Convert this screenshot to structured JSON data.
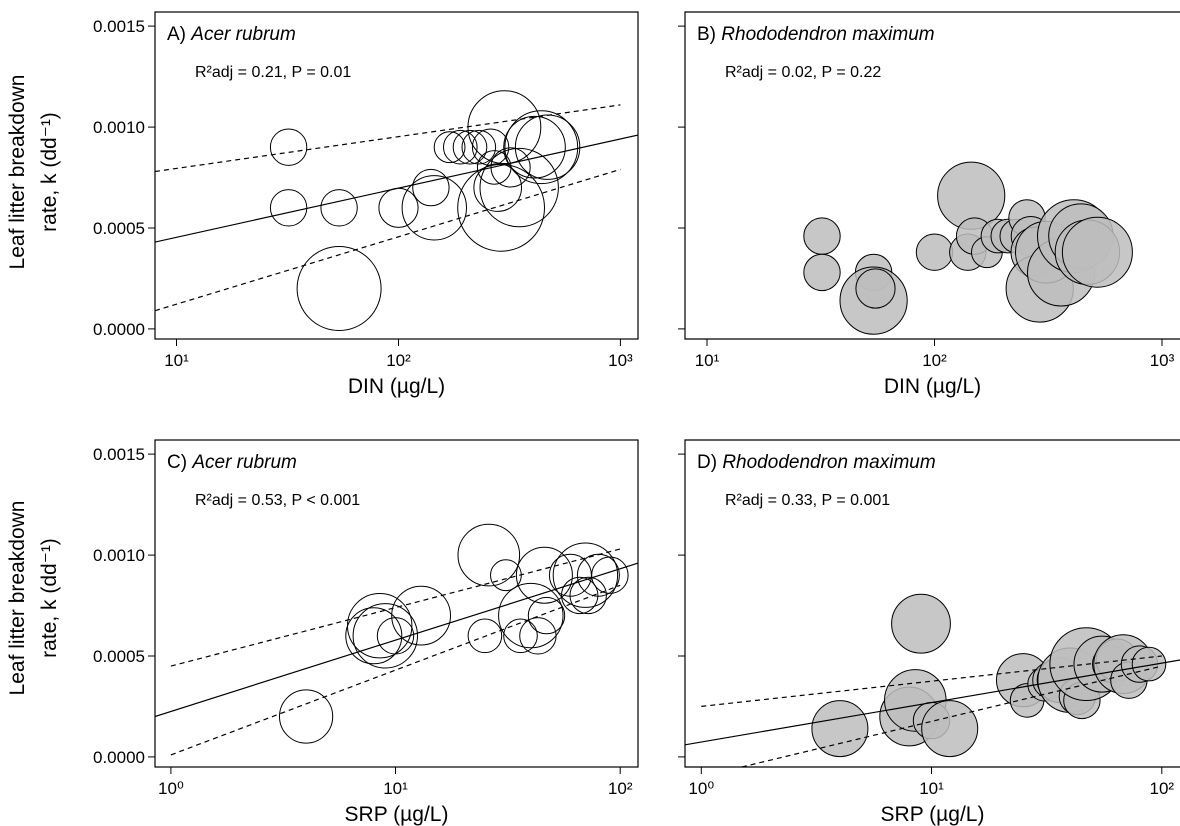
{
  "figure": {
    "y_axis_label_line1": "Leaf litter breakdown",
    "y_axis_label_line2": "rate, k (dd⁻¹)"
  },
  "chart_data": [
    {
      "type": "scatter",
      "panel": "A) ",
      "title": "Acer rubrum",
      "stat": "R²adj = 0.21, P = 0.01",
      "xlabel": "DIN (µg/L)",
      "xscale": "log",
      "xlim": [
        8,
        1200
      ],
      "ylim": [
        -5e-05,
        0.00157
      ],
      "xticks": [
        10,
        100,
        1000
      ],
      "xtick_labels": [
        "10¹",
        "10²",
        "10³"
      ],
      "yticks": [
        0.0,
        0.0005,
        0.001,
        0.0015
      ],
      "ytick_labels": [
        "0.0000",
        "0.0005",
        "0.0010",
        "0.0015"
      ],
      "show_ytick_labels": true,
      "marker_fill": "#ffffff",
      "fit_line": {
        "x": [
          8,
          1200
        ],
        "y": [
          0.00043,
          0.00096
        ]
      },
      "ci_upper": {
        "x": [
          8,
          1000
        ],
        "y": [
          0.00078,
          0.00111
        ]
      },
      "ci_lower": {
        "x": [
          8,
          1000
        ],
        "y": [
          9e-05,
          0.00079
        ]
      },
      "points": [
        {
          "x": 32,
          "y": 0.0009,
          "size": 1.3
        },
        {
          "x": 32,
          "y": 0.0006,
          "size": 1.3
        },
        {
          "x": 54,
          "y": 0.0006,
          "size": 1.3
        },
        {
          "x": 54,
          "y": 0.0002,
          "size": 3.0
        },
        {
          "x": 100,
          "y": 0.0006,
          "size": 1.4
        },
        {
          "x": 140,
          "y": 0.0007,
          "size": 1.3
        },
        {
          "x": 145,
          "y": 0.0006,
          "size": 2.3
        },
        {
          "x": 170,
          "y": 0.0009,
          "size": 1.1
        },
        {
          "x": 190,
          "y": 0.0009,
          "size": 1.2
        },
        {
          "x": 210,
          "y": 0.0009,
          "size": 1.2
        },
        {
          "x": 230,
          "y": 0.0009,
          "size": 1.2
        },
        {
          "x": 260,
          "y": 0.0009,
          "size": 1.3
        },
        {
          "x": 270,
          "y": 0.0008,
          "size": 1.2
        },
        {
          "x": 280,
          "y": 0.0007,
          "size": 1.7
        },
        {
          "x": 290,
          "y": 0.0006,
          "size": 3.1
        },
        {
          "x": 300,
          "y": 0.001,
          "size": 2.6
        },
        {
          "x": 320,
          "y": 0.0008,
          "size": 1.4
        },
        {
          "x": 350,
          "y": 0.0007,
          "size": 2.8
        },
        {
          "x": 410,
          "y": 0.0009,
          "size": 2.2
        },
        {
          "x": 440,
          "y": 0.0009,
          "size": 2.6
        },
        {
          "x": 470,
          "y": 0.0009,
          "size": 2.3
        }
      ]
    },
    {
      "type": "scatter",
      "panel": "B) ",
      "title": "Rhododendron maximum",
      "stat": "R²adj = 0.02, P = 0.22",
      "xlabel": "DIN (µg/L)",
      "xscale": "log",
      "xlim": [
        8,
        1200
      ],
      "ylim": [
        -5e-05,
        0.00157
      ],
      "xticks": [
        10,
        100,
        1000
      ],
      "xtick_labels": [
        "10¹",
        "10²",
        "10³"
      ],
      "yticks": [
        0.0,
        0.0005,
        0.001,
        0.0015
      ],
      "ytick_labels": [
        "0.0000",
        "0.0005",
        "0.0010",
        "0.0015"
      ],
      "show_ytick_labels": false,
      "marker_fill": "#bdbdbd",
      "points": [
        {
          "x": 32,
          "y": 0.00046,
          "size": 1.3
        },
        {
          "x": 32,
          "y": 0.00028,
          "size": 1.3
        },
        {
          "x": 54,
          "y": 0.00028,
          "size": 1.3
        },
        {
          "x": 54,
          "y": 0.00014,
          "size": 2.4
        },
        {
          "x": 55,
          "y": 0.0002,
          "size": 1.4
        },
        {
          "x": 100,
          "y": 0.00038,
          "size": 1.3
        },
        {
          "x": 140,
          "y": 0.00038,
          "size": 1.3
        },
        {
          "x": 145,
          "y": 0.00066,
          "size": 2.4
        },
        {
          "x": 150,
          "y": 0.00046,
          "size": 1.3
        },
        {
          "x": 170,
          "y": 0.00038,
          "size": 1.1
        },
        {
          "x": 190,
          "y": 0.00046,
          "size": 1.2
        },
        {
          "x": 210,
          "y": 0.00046,
          "size": 1.2
        },
        {
          "x": 230,
          "y": 0.00046,
          "size": 1.2
        },
        {
          "x": 255,
          "y": 0.00055,
          "size": 1.3
        },
        {
          "x": 265,
          "y": 0.00046,
          "size": 1.4
        },
        {
          "x": 280,
          "y": 0.00038,
          "size": 1.8
        },
        {
          "x": 290,
          "y": 0.0002,
          "size": 2.4
        },
        {
          "x": 310,
          "y": 0.00038,
          "size": 2.2
        },
        {
          "x": 360,
          "y": 0.00028,
          "size": 2.4
        },
        {
          "x": 410,
          "y": 0.00046,
          "size": 2.6
        },
        {
          "x": 440,
          "y": 0.00046,
          "size": 2.3
        },
        {
          "x": 470,
          "y": 0.00038,
          "size": 2.3
        },
        {
          "x": 520,
          "y": 0.00038,
          "size": 2.5
        }
      ]
    },
    {
      "type": "scatter",
      "panel": "C) ",
      "title": "Acer rubrum",
      "stat": "R²adj = 0.53, P < 0.001",
      "xlabel": "SRP (µg/L)",
      "xscale": "log",
      "xlim": [
        0.85,
        120
      ],
      "ylim": [
        -5e-05,
        0.00157
      ],
      "xticks": [
        1,
        10,
        100
      ],
      "xtick_labels": [
        "10⁰",
        "10¹",
        "10²"
      ],
      "yticks": [
        0.0,
        0.0005,
        0.001,
        0.0015
      ],
      "ytick_labels": [
        "0.0000",
        "0.0005",
        "0.0010",
        "0.0015"
      ],
      "show_ytick_labels": true,
      "marker_fill": "#ffffff",
      "fit_line": {
        "x": [
          0.85,
          120
        ],
        "y": [
          0.0002,
          0.00096
        ]
      },
      "ci_upper": {
        "x": [
          1,
          100
        ],
        "y": [
          0.00045,
          0.00103
        ]
      },
      "ci_lower": {
        "x": [
          1,
          100
        ],
        "y": [
          1e-05,
          0.00085
        ]
      },
      "points": [
        {
          "x": 4,
          "y": 0.0002,
          "size": 1.9
        },
        {
          "x": 8,
          "y": 0.0006,
          "size": 2.0
        },
        {
          "x": 8.5,
          "y": 0.00065,
          "size": 2.3
        },
        {
          "x": 9,
          "y": 0.0006,
          "size": 2.3
        },
        {
          "x": 10,
          "y": 0.0006,
          "size": 1.3
        },
        {
          "x": 13,
          "y": 0.0007,
          "size": 2.1
        },
        {
          "x": 25,
          "y": 0.0006,
          "size": 1.2
        },
        {
          "x": 26,
          "y": 0.001,
          "size": 2.2
        },
        {
          "x": 31,
          "y": 0.0009,
          "size": 1.1
        },
        {
          "x": 36,
          "y": 0.0006,
          "size": 1.2
        },
        {
          "x": 40,
          "y": 0.0007,
          "size": 2.3
        },
        {
          "x": 43,
          "y": 0.0006,
          "size": 1.3
        },
        {
          "x": 46,
          "y": 0.0009,
          "size": 2.0
        },
        {
          "x": 47,
          "y": 0.0007,
          "size": 1.3
        },
        {
          "x": 60,
          "y": 0.0009,
          "size": 1.5
        },
        {
          "x": 66,
          "y": 0.0008,
          "size": 1.3
        },
        {
          "x": 70,
          "y": 0.0009,
          "size": 2.3
        },
        {
          "x": 72,
          "y": 0.0008,
          "size": 1.3
        },
        {
          "x": 80,
          "y": 0.0009,
          "size": 1.5
        },
        {
          "x": 90,
          "y": 0.0009,
          "size": 1.3
        }
      ]
    },
    {
      "type": "scatter",
      "panel": "D) ",
      "title": "Rhododendron maximum",
      "stat": "R²adj = 0.33, P = 0.001",
      "xlabel": "SRP (µg/L)",
      "xscale": "log",
      "xlim": [
        0.85,
        120
      ],
      "ylim": [
        -5e-05,
        0.00157
      ],
      "xticks": [
        1,
        10,
        100
      ],
      "xtick_labels": [
        "10⁰",
        "10¹",
        "10²"
      ],
      "yticks": [
        0.0,
        0.0005,
        0.001,
        0.0015
      ],
      "ytick_labels": [
        "0.0000",
        "0.0005",
        "0.0010",
        "0.0015"
      ],
      "show_ytick_labels": false,
      "marker_fill": "#bdbdbd",
      "fit_line": {
        "x": [
          0.85,
          120
        ],
        "y": [
          6e-05,
          0.00048
        ]
      },
      "ci_upper": {
        "x": [
          1,
          100
        ],
        "y": [
          0.00025,
          0.0005
        ]
      },
      "ci_lower": {
        "x": [
          1.5,
          100
        ],
        "y": [
          -5e-05,
          0.00045
        ]
      },
      "points": [
        {
          "x": 4,
          "y": 0.00014,
          "size": 2.0
        },
        {
          "x": 8,
          "y": 0.0002,
          "size": 2.1
        },
        {
          "x": 8.5,
          "y": 0.00028,
          "size": 2.2
        },
        {
          "x": 9,
          "y": 0.00066,
          "size": 2.1
        },
        {
          "x": 10,
          "y": 0.00018,
          "size": 1.3
        },
        {
          "x": 12,
          "y": 0.00014,
          "size": 2.0
        },
        {
          "x": 25,
          "y": 0.00038,
          "size": 1.9
        },
        {
          "x": 26,
          "y": 0.00028,
          "size": 1.2
        },
        {
          "x": 31,
          "y": 0.00036,
          "size": 1.2
        },
        {
          "x": 33,
          "y": 0.00038,
          "size": 1.3
        },
        {
          "x": 36,
          "y": 0.00038,
          "size": 1.6
        },
        {
          "x": 40,
          "y": 0.00038,
          "size": 2.3
        },
        {
          "x": 43,
          "y": 0.0003,
          "size": 1.3
        },
        {
          "x": 45,
          "y": 0.00028,
          "size": 1.3
        },
        {
          "x": 47,
          "y": 0.00046,
          "size": 2.6
        },
        {
          "x": 55,
          "y": 0.00046,
          "size": 2.0
        },
        {
          "x": 60,
          "y": 0.00046,
          "size": 1.3
        },
        {
          "x": 64,
          "y": 0.00048,
          "size": 1.5
        },
        {
          "x": 68,
          "y": 0.00046,
          "size": 2.1
        },
        {
          "x": 72,
          "y": 0.00038,
          "size": 1.3
        },
        {
          "x": 80,
          "y": 0.00046,
          "size": 1.3
        },
        {
          "x": 88,
          "y": 0.00046,
          "size": 1.2
        }
      ]
    }
  ]
}
